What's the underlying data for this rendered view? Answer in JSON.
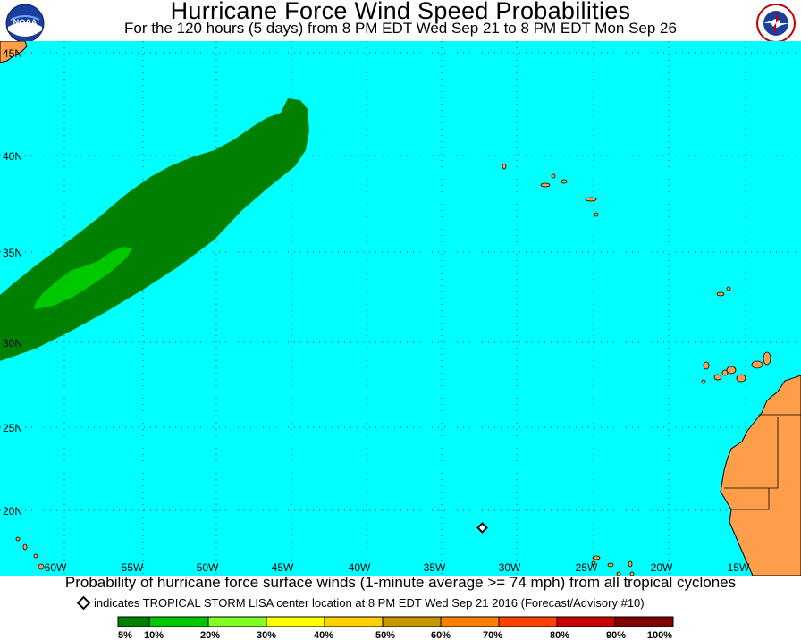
{
  "header": {
    "title": "Hurricane Force Wind Speed Probabilities",
    "subtitle": "For the 120 hours (5 days) from 8 PM EDT Wed Sep 21 to 8 PM EDT Mon Sep 26"
  },
  "logos": {
    "left": "NOAA",
    "right": "NATIONAL WEATHER SERVICE"
  },
  "map": {
    "ocean_color": "#00ffff",
    "land_color": "#ff9e4a",
    "lat_labels": [
      "45N",
      "40N",
      "35N",
      "30N",
      "25N",
      "20N"
    ],
    "lon_labels": [
      "60W",
      "55W",
      "50W",
      "45W",
      "40W",
      "35W",
      "30W",
      "25W",
      "20W",
      "15W"
    ],
    "storm_marker": "diamond",
    "probability_areas": [
      {
        "range": "5%-10%",
        "color": "#008000"
      },
      {
        "range": "10%-20%",
        "color": "#00c800"
      }
    ]
  },
  "caption": "Probability of hurricane force surface winds (1-minute average >= 74 mph) from all tropical cyclones",
  "legend_note": "indicates TROPICAL STORM LISA center location at 8 PM EDT Wed Sep 21 2016 (Forecast/Advisory #10)",
  "scale": {
    "labels": [
      "5%",
      "10%",
      "20%",
      "30%",
      "40%",
      "50%",
      "60%",
      "70%",
      "80%",
      "90%",
      "100%"
    ],
    "colors": [
      "#008000",
      "#00c800",
      "#80ff20",
      "#ffff00",
      "#ffd000",
      "#c89600",
      "#ff8000",
      "#ff4000",
      "#c80000",
      "#800000",
      "#a000a0"
    ]
  }
}
